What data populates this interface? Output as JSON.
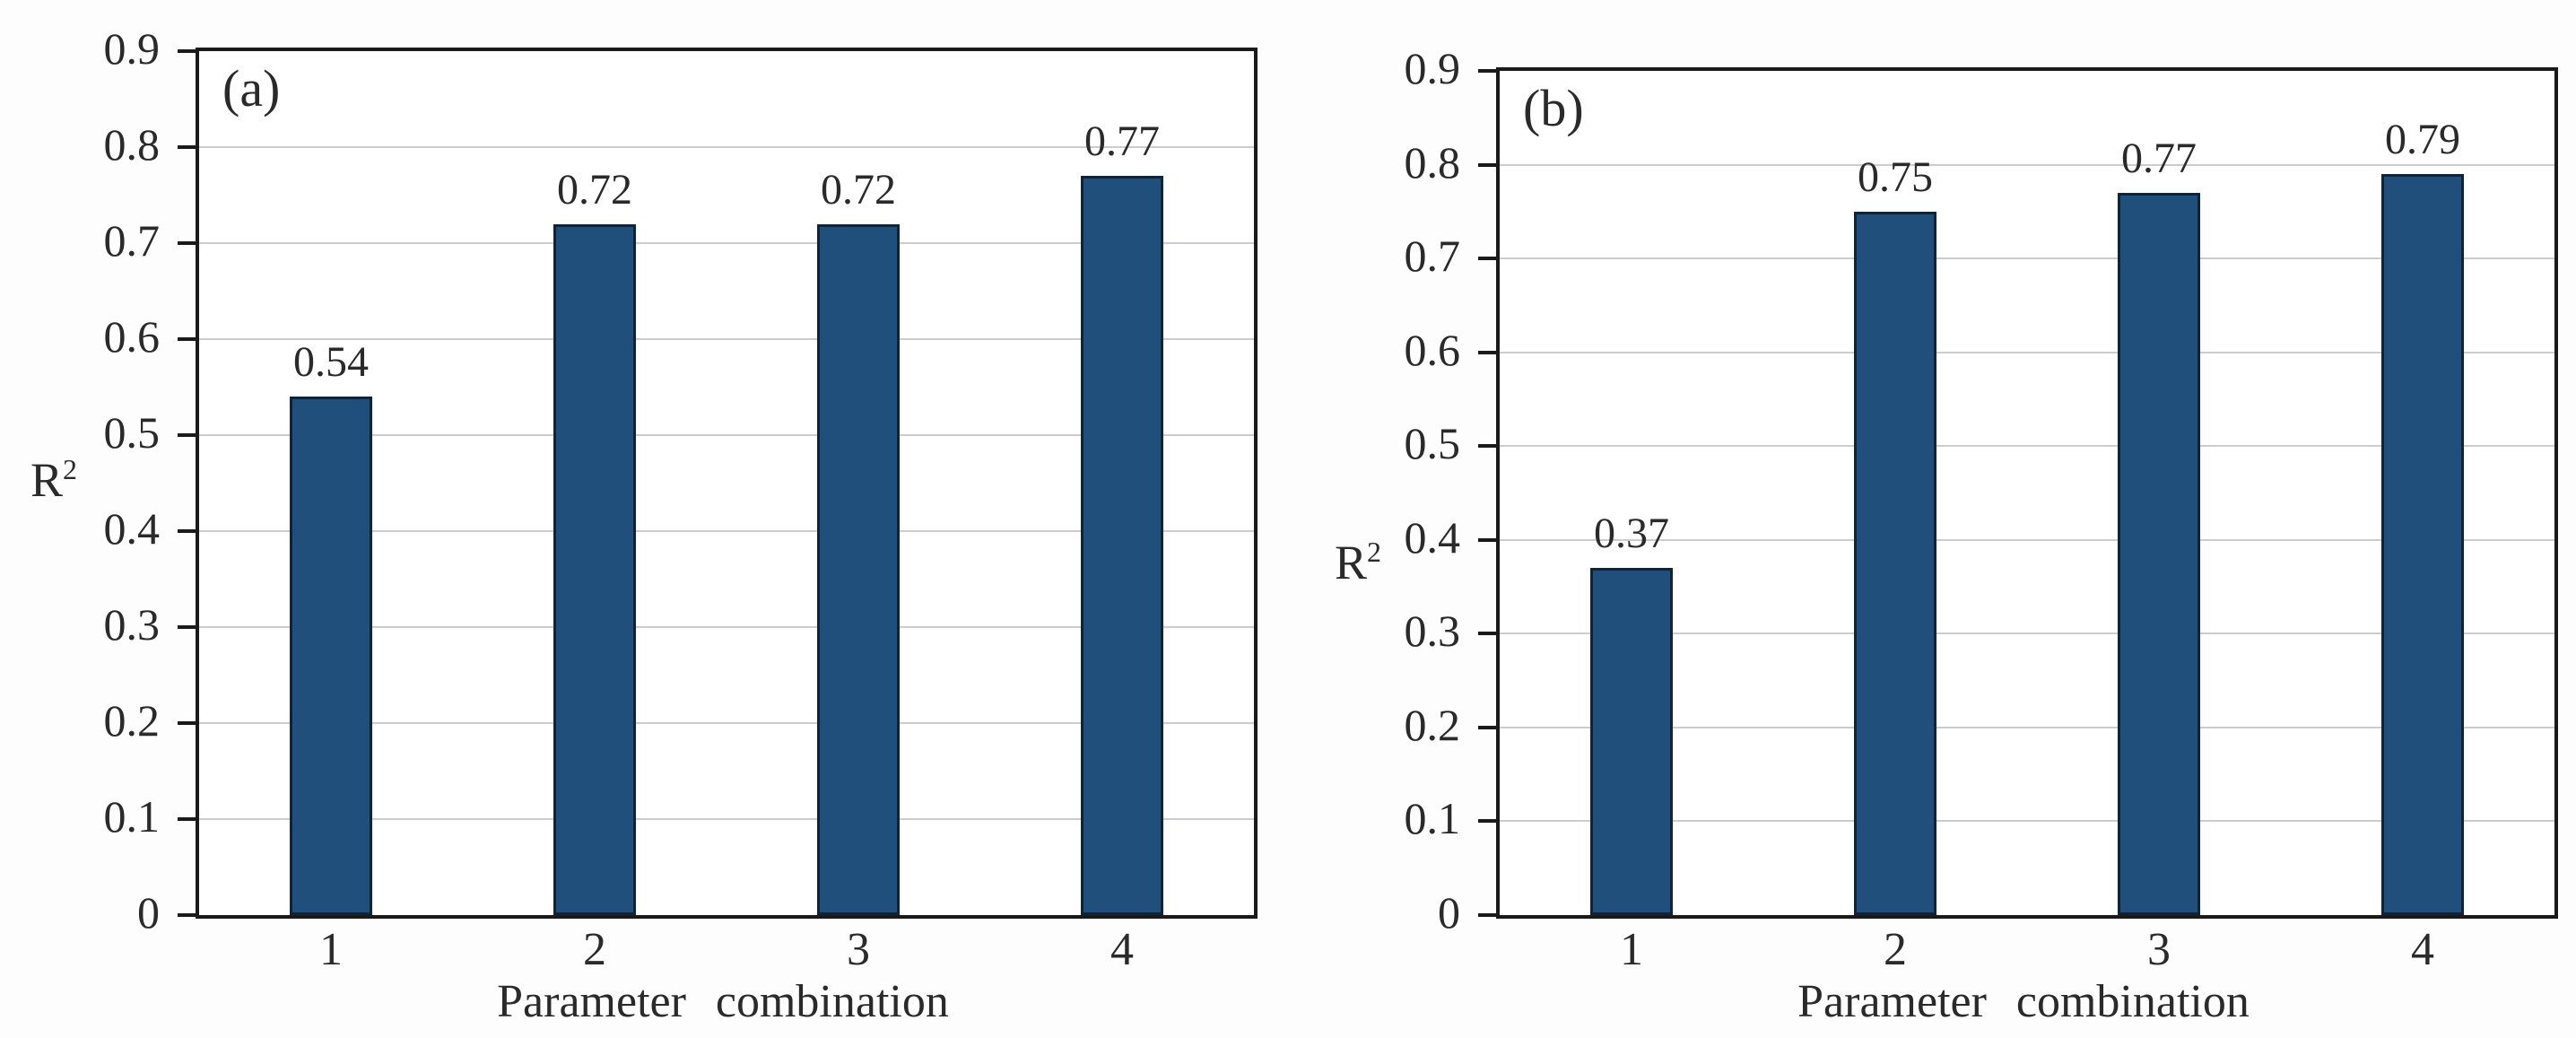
{
  "figure": {
    "background": "#fdfdfd",
    "bar_fill": "#214f7b",
    "bar_edge": "#0f2439",
    "gridline_color": "#cccccc",
    "axis_color": "#1a1a1a",
    "text_color": "#2a2a2a"
  },
  "chart_data": [
    {
      "type": "bar",
      "panel_label": "(a)",
      "categories": [
        "1",
        "2",
        "3",
        "4"
      ],
      "values": [
        0.54,
        0.72,
        0.72,
        0.77
      ],
      "bar_labels": [
        "0.54",
        "0.72",
        "0.72",
        "0.77"
      ],
      "xlabel": "Parameter combination",
      "ylabel": "R²",
      "ylabel_base": "R",
      "ylabel_sup": "2",
      "ylim": [
        0,
        0.9
      ],
      "ytick_step": 0.1,
      "ytick_labels": [
        "0",
        "0.1",
        "0.2",
        "0.3",
        "0.4",
        "0.5",
        "0.6",
        "0.7",
        "0.8",
        "0.9"
      ],
      "grid": true,
      "legend": false
    },
    {
      "type": "bar",
      "panel_label": "(b)",
      "categories": [
        "1",
        "2",
        "3",
        "4"
      ],
      "values": [
        0.37,
        0.75,
        0.77,
        0.79
      ],
      "bar_labels": [
        "0.37",
        "0.75",
        "0.77",
        "0.79"
      ],
      "xlabel": "Parameter combination",
      "ylabel": "R²",
      "ylabel_base": "R",
      "ylabel_sup": "2",
      "ylim": [
        0,
        0.9
      ],
      "ytick_step": 0.1,
      "ytick_labels": [
        "0",
        "0.1",
        "0.2",
        "0.3",
        "0.4",
        "0.5",
        "0.6",
        "0.7",
        "0.8",
        "0.9"
      ],
      "grid": true,
      "legend": false
    }
  ]
}
